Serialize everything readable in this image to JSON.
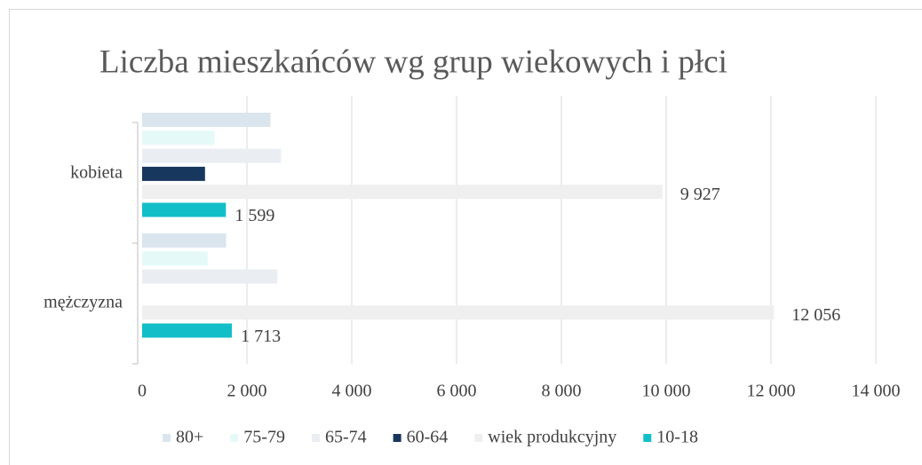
{
  "chart_data": {
    "type": "bar",
    "orientation": "horizontal",
    "title": "Liczba mieszkańców wg grup wiekowych i płci",
    "categories": [
      "kobieta",
      "mężczyzna"
    ],
    "series": [
      {
        "name": "80+",
        "color": "#dbe5ed",
        "values": [
          2450,
          1600
        ]
      },
      {
        "name": "75-79",
        "color": "#e6f9f9",
        "values": [
          1380,
          1250
        ]
      },
      {
        "name": "65-74",
        "color": "#eaedf2",
        "values": [
          2650,
          2580
        ]
      },
      {
        "name": "60-64",
        "color": "#17375e",
        "values": [
          1200,
          null
        ]
      },
      {
        "name": "wiek produkcyjny",
        "color": "#efefef",
        "values": [
          9927,
          12056
        ],
        "value_labels": [
          "9 927",
          "12 056"
        ]
      },
      {
        "name": "10-18",
        "color": "#12bfc8",
        "values": [
          1599,
          1713
        ],
        "value_labels": [
          "1 599",
          "1 713"
        ]
      }
    ],
    "xlim": [
      0,
      14000
    ],
    "xticks": [
      0,
      {
        "value": 2000,
        "label": "2 000"
      },
      {
        "value": 4000,
        "label": "4 000"
      },
      {
        "value": 6000,
        "label": "6 000"
      },
      {
        "value": 8000,
        "label": "8 000"
      },
      {
        "value": 10000,
        "label": "10 000"
      },
      {
        "value": 12000,
        "label": "12 000"
      },
      {
        "value": 14000,
        "label": "14 000"
      }
    ],
    "grid": true,
    "legend": "bottom"
  }
}
